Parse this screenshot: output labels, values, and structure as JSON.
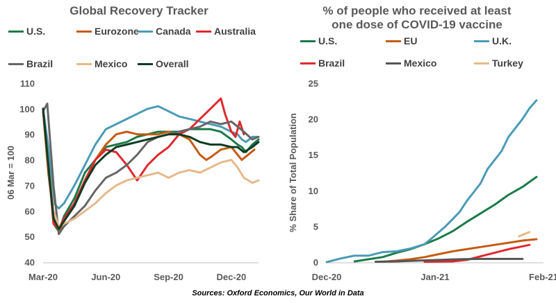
{
  "source": "Sources: Oxford Economics, Our World in Data",
  "chart_data": [
    {
      "type": "line",
      "title": "Global Recovery Tracker",
      "ylabel": "06 Mar = 100",
      "xlabel": "",
      "ylim": [
        40,
        110
      ],
      "yticks": [
        "40",
        "50",
        "60",
        "70",
        "80",
        "90",
        "100",
        "110"
      ],
      "x_tick_labels": [
        "Mar-20",
        "Jun-20",
        "Sep-20",
        "Dec-20"
      ],
      "x_tick_positions": [
        0,
        3,
        6,
        9
      ],
      "xlim": [
        0,
        10.3
      ],
      "grid": false,
      "legend_position": "top",
      "series": [
        {
          "name": "U.S.",
          "color": "#1a7a4a",
          "points": [
            [
              0,
              100
            ],
            [
              0.25,
              80
            ],
            [
              0.5,
              55
            ],
            [
              0.75,
              52
            ],
            [
              1,
              58
            ],
            [
              1.5,
              65
            ],
            [
              2,
              75
            ],
            [
              2.5,
              80
            ],
            [
              3,
              85
            ],
            [
              3.5,
              86
            ],
            [
              4,
              87
            ],
            [
              4.5,
              89
            ],
            [
              5,
              90
            ],
            [
              5.5,
              91
            ],
            [
              6,
              91
            ],
            [
              6.5,
              91
            ],
            [
              7,
              92
            ],
            [
              7.5,
              92
            ],
            [
              8,
              92
            ],
            [
              8.5,
              91
            ],
            [
              9,
              88
            ],
            [
              9.3,
              86
            ],
            [
              9.5,
              85
            ],
            [
              9.7,
              83
            ],
            [
              10,
              86
            ],
            [
              10.3,
              88
            ]
          ]
        },
        {
          "name": "Eurozone",
          "color": "#c55a11",
          "points": [
            [
              0,
              99
            ],
            [
              0.25,
              75
            ],
            [
              0.5,
              58
            ],
            [
              0.75,
              52
            ],
            [
              1,
              56
            ],
            [
              1.5,
              63
            ],
            [
              2,
              72
            ],
            [
              2.5,
              80
            ],
            [
              3,
              86
            ],
            [
              3.5,
              90
            ],
            [
              4,
              91
            ],
            [
              4.5,
              90
            ],
            [
              5,
              90
            ],
            [
              5.5,
              90
            ],
            [
              6,
              91
            ],
            [
              6.5,
              90
            ],
            [
              7,
              88
            ],
            [
              7.5,
              82
            ],
            [
              7.8,
              80
            ],
            [
              8,
              81
            ],
            [
              8.5,
              84
            ],
            [
              9,
              85
            ],
            [
              9.3,
              82
            ],
            [
              9.5,
              80
            ],
            [
              9.8,
              82
            ],
            [
              10.1,
              84
            ]
          ]
        },
        {
          "name": "Canada",
          "color": "#4a9bb5",
          "points": [
            [
              0,
              100
            ],
            [
              0.25,
              85
            ],
            [
              0.5,
              63
            ],
            [
              0.75,
              61
            ],
            [
              1,
              63
            ],
            [
              1.5,
              70
            ],
            [
              2,
              78
            ],
            [
              2.5,
              86
            ],
            [
              3,
              92
            ],
            [
              3.5,
              94
            ],
            [
              4,
              96
            ],
            [
              4.5,
              98
            ],
            [
              5,
              100
            ],
            [
              5.5,
              101
            ],
            [
              6,
              99
            ],
            [
              6.5,
              97
            ],
            [
              7,
              96
            ],
            [
              7.5,
              95
            ],
            [
              8,
              94
            ],
            [
              8.5,
              93
            ],
            [
              9,
              91
            ],
            [
              9.3,
              90
            ],
            [
              9.5,
              88
            ],
            [
              9.7,
              87
            ],
            [
              10,
              89
            ],
            [
              10.3,
              89
            ]
          ]
        },
        {
          "name": "Australia",
          "color": "#e0282e",
          "points": [
            [
              0,
              99
            ],
            [
              0.25,
              78
            ],
            [
              0.5,
              55
            ],
            [
              0.75,
              53
            ],
            [
              1,
              57
            ],
            [
              1.5,
              63
            ],
            [
              2,
              72
            ],
            [
              2.5,
              80
            ],
            [
              3,
              84
            ],
            [
              3.5,
              83
            ],
            [
              4,
              78
            ],
            [
              4.5,
              72
            ],
            [
              5,
              78
            ],
            [
              5.5,
              82
            ],
            [
              6,
              85
            ],
            [
              6.5,
              90
            ],
            [
              7,
              92
            ],
            [
              7.5,
              96
            ],
            [
              8,
              100
            ],
            [
              8.5,
              104
            ],
            [
              8.7,
              98
            ],
            [
              9,
              91
            ],
            [
              9.2,
              89
            ],
            [
              9.4,
              95
            ],
            [
              9.6,
              90
            ]
          ]
        },
        {
          "name": "Brazil",
          "color": "#666666",
          "points": [
            [
              0,
              99
            ],
            [
              0.2,
              102
            ],
            [
              0.5,
              70
            ],
            [
              0.75,
              51
            ],
            [
              1,
              54
            ],
            [
              1.5,
              58
            ],
            [
              2,
              62
            ],
            [
              2.5,
              68
            ],
            [
              3,
              73
            ],
            [
              3.5,
              75
            ],
            [
              4,
              78
            ],
            [
              4.5,
              82
            ],
            [
              5,
              87
            ],
            [
              5.5,
              89
            ],
            [
              6,
              90
            ],
            [
              6.5,
              91
            ],
            [
              7,
              92
            ],
            [
              7.5,
              93
            ],
            [
              8,
              95
            ],
            [
              8.5,
              94
            ],
            [
              9,
              95
            ],
            [
              9.3,
              93
            ],
            [
              9.6,
              91
            ],
            [
              10,
              88
            ],
            [
              10.3,
              89
            ]
          ]
        },
        {
          "name": "Mexico",
          "color": "#e6b98a",
          "points": [
            [
              0,
              100
            ],
            [
              0.25,
              78
            ],
            [
              0.5,
              60
            ],
            [
              0.75,
              54
            ],
            [
              1,
              55
            ],
            [
              1.5,
              57
            ],
            [
              2,
              60
            ],
            [
              2.5,
              63
            ],
            [
              3,
              67
            ],
            [
              3.5,
              70
            ],
            [
              4,
              72
            ],
            [
              4.5,
              73
            ],
            [
              5,
              74
            ],
            [
              5.5,
              75
            ],
            [
              6,
              73
            ],
            [
              6.5,
              75
            ],
            [
              7,
              76
            ],
            [
              7.5,
              75
            ],
            [
              8,
              77
            ],
            [
              8.5,
              79
            ],
            [
              9,
              80
            ],
            [
              9.3,
              77
            ],
            [
              9.6,
              73
            ],
            [
              10,
              71
            ],
            [
              10.3,
              72
            ]
          ]
        },
        {
          "name": "Overall",
          "color": "#0d3b22",
          "points": [
            [
              0,
              100
            ],
            [
              0.25,
              78
            ],
            [
              0.5,
              57
            ],
            [
              0.75,
              53
            ],
            [
              1,
              56
            ],
            [
              1.5,
              62
            ],
            [
              2,
              71
            ],
            [
              2.5,
              78
            ],
            [
              3,
              82
            ],
            [
              3.5,
              85
            ],
            [
              4,
              86
            ],
            [
              4.5,
              87
            ],
            [
              5,
              88
            ],
            [
              5.5,
              89
            ],
            [
              6,
              90
            ],
            [
              6.5,
              90
            ],
            [
              7,
              89
            ],
            [
              7.5,
              87
            ],
            [
              8,
              86
            ],
            [
              8.5,
              86
            ],
            [
              9,
              85
            ],
            [
              9.3,
              85
            ],
            [
              9.6,
              83
            ],
            [
              10,
              85
            ],
            [
              10.3,
              87
            ]
          ]
        }
      ]
    },
    {
      "type": "line",
      "title": "% of people who received at least one dose of COVID-19 vaccine",
      "title_lines": [
        "% of people who received at least",
        "one dose of COVID-19 vaccine"
      ],
      "ylabel": "% Share of Total Population",
      "xlabel": "",
      "ylim": [
        0,
        25
      ],
      "yticks": [
        "0",
        "5",
        "10",
        "15",
        "20",
        "25"
      ],
      "x_tick_labels": [
        "Dec-20",
        "Jan-21",
        "Feb-21"
      ],
      "x_tick_positions": [
        0,
        31,
        62
      ],
      "xlim": [
        0,
        62
      ],
      "grid": false,
      "legend_position": "top",
      "series": [
        {
          "name": "U.S.",
          "color": "#1a7a4a",
          "points": [
            [
              8,
              0.1
            ],
            [
              12,
              0.4
            ],
            [
              16,
              0.7
            ],
            [
              20,
              1.3
            ],
            [
              24,
              1.8
            ],
            [
              28,
              2.5
            ],
            [
              32,
              3.3
            ],
            [
              36,
              4.3
            ],
            [
              40,
              5.6
            ],
            [
              44,
              6.8
            ],
            [
              48,
              8.0
            ],
            [
              52,
              9.4
            ],
            [
              56,
              10.5
            ],
            [
              60,
              11.9
            ]
          ]
        },
        {
          "name": "EU",
          "color": "#c55a11",
          "points": [
            [
              16,
              0.05
            ],
            [
              20,
              0.2
            ],
            [
              24,
              0.4
            ],
            [
              28,
              0.7
            ],
            [
              32,
              1.1
            ],
            [
              36,
              1.5
            ],
            [
              40,
              1.8
            ],
            [
              44,
              2.1
            ],
            [
              48,
              2.4
            ],
            [
              52,
              2.7
            ],
            [
              56,
              3.0
            ],
            [
              60,
              3.2
            ]
          ]
        },
        {
          "name": "U.K.",
          "color": "#4a9bb5",
          "points": [
            [
              0,
              0
            ],
            [
              4,
              0.5
            ],
            [
              8,
              0.9
            ],
            [
              12,
              0.9
            ],
            [
              16,
              1.4
            ],
            [
              20,
              1.5
            ],
            [
              24,
              1.9
            ],
            [
              28,
              2.5
            ],
            [
              30,
              3.3
            ],
            [
              34,
              5.0
            ],
            [
              38,
              7.0
            ],
            [
              40,
              8.5
            ],
            [
              44,
              11.0
            ],
            [
              46,
              13.0
            ],
            [
              50,
              15.5
            ],
            [
              52,
              17.5
            ],
            [
              56,
              20.0
            ],
            [
              58,
              21.5
            ],
            [
              60,
              22.6
            ]
          ]
        },
        {
          "name": "Brazil",
          "color": "#e0282e",
          "points": [
            [
              28,
              0.05
            ],
            [
              36,
              0.1
            ],
            [
              40,
              0.3
            ],
            [
              44,
              0.8
            ],
            [
              48,
              1.3
            ],
            [
              52,
              1.8
            ],
            [
              56,
              2.2
            ],
            [
              58,
              2.4
            ]
          ]
        },
        {
          "name": "Mexico",
          "color": "#555555",
          "points": [
            [
              14,
              0.05
            ],
            [
              20,
              0.1
            ],
            [
              26,
              0.2
            ],
            [
              32,
              0.3
            ],
            [
              38,
              0.4
            ],
            [
              44,
              0.45
            ],
            [
              50,
              0.45
            ],
            [
              56,
              0.45
            ]
          ]
        },
        {
          "name": "Turkey",
          "color": "#e6b98a",
          "points": [
            [
              55,
              3.6
            ],
            [
              57,
              4.0
            ],
            [
              58,
              4.2
            ]
          ]
        }
      ]
    }
  ]
}
